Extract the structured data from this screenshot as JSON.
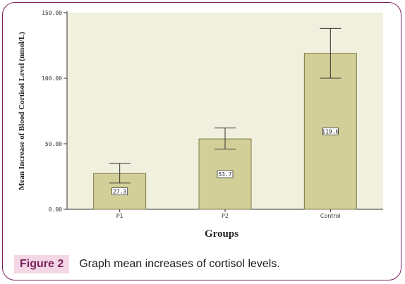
{
  "chart_data": {
    "type": "bar",
    "categories": [
      "P1",
      "P2",
      "Control"
    ],
    "values": [
      27.3,
      53.7,
      119.0
    ],
    "value_labels": [
      "27.3",
      "53.7",
      "119.0"
    ],
    "error_low": [
      20,
      46,
      100
    ],
    "error_high": [
      35,
      62,
      138
    ],
    "xlabel": "Groups",
    "ylabel": "Mean Increase of Blood Cortisol Level (nmol/L)",
    "ylim": [
      0,
      150
    ],
    "yticks": [
      0,
      50,
      100,
      150
    ],
    "ytick_labels": [
      "0.00",
      "50.00",
      "100.00",
      "150.00"
    ],
    "grid": false,
    "colors": {
      "plot_bg": "#f1f0de",
      "bar_fill": "#d3cf98",
      "bar_stroke": "#7a7a4a",
      "frame": "#7a1f5c",
      "caption_label_bg": "#f3d7e4"
    }
  },
  "caption": {
    "label": "Figure 2",
    "text": "Graph mean increases of cortisol levels."
  }
}
